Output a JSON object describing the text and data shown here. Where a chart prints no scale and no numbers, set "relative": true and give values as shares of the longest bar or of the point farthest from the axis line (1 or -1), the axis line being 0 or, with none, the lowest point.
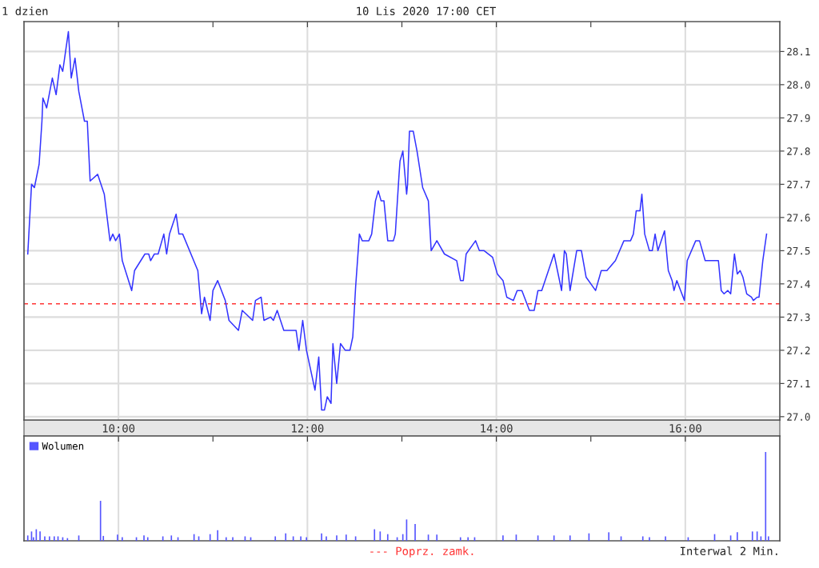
{
  "chart_data": [
    {
      "type": "line",
      "title": "1 dzien",
      "subtitle": "10 Lis 2020 17:00 CET",
      "xlim": [
        9,
        17
      ],
      "xticks": [
        {
          "value": 10,
          "label": "10:00"
        },
        {
          "value": 11,
          "label": null
        },
        {
          "value": 12,
          "label": "12:00"
        },
        {
          "value": 13,
          "label": null
        },
        {
          "value": 14,
          "label": "14:00"
        },
        {
          "value": 15,
          "label": null
        },
        {
          "value": 16,
          "label": "16:00"
        }
      ],
      "ylim": [
        26.99,
        28.19
      ],
      "yticks": [
        {
          "value": 27.0,
          "label": "27.0"
        },
        27.1,
        27.2,
        27.3,
        27.4,
        27.5,
        27.6,
        27.7,
        27.8,
        27.9,
        {
          "value": 28.0,
          "label": "28.0"
        },
        28.1
      ],
      "grid": true,
      "marker": "none",
      "line_style": "solid",
      "ref_lines": [
        {
          "axis": "y",
          "value": 27.34,
          "label": "--- Poprz. zamk.",
          "color": "#ff3333",
          "line_style": "dashed"
        }
      ],
      "series": [
        {
          "color": "#3333ff",
          "x": [
            9.04,
            9.08,
            9.11,
            9.16,
            9.19,
            9.2,
            9.24,
            9.3,
            9.34,
            9.38,
            9.41,
            9.44,
            9.47,
            9.5,
            9.54,
            9.58,
            9.64,
            9.67,
            9.7,
            9.78,
            9.85,
            9.91,
            9.94,
            9.97,
            10.01,
            10.04,
            10.14,
            10.17,
            10.28,
            10.32,
            10.34,
            10.38,
            10.42,
            10.48,
            10.51,
            10.54,
            10.61,
            10.64,
            10.68,
            10.84,
            10.88,
            10.91,
            10.97,
            11.0,
            11.05,
            11.13,
            11.17,
            11.27,
            11.31,
            11.42,
            11.45,
            11.51,
            11.54,
            11.61,
            11.64,
            11.68,
            11.75,
            11.88,
            11.91,
            11.95,
            11.99,
            12.08,
            12.12,
            12.15,
            12.18,
            12.21,
            12.25,
            12.27,
            12.31,
            12.35,
            12.4,
            12.45,
            12.48,
            12.51,
            12.55,
            12.58,
            12.65,
            12.68,
            12.72,
            12.75,
            12.78,
            12.81,
            12.85,
            12.91,
            12.93,
            12.97,
            12.98,
            13.01,
            13.05,
            13.06,
            13.08,
            13.12,
            13.16,
            13.22,
            13.28,
            13.31,
            13.37,
            13.45,
            13.58,
            13.62,
            13.65,
            13.68,
            13.78,
            13.82,
            13.87,
            13.96,
            14.01,
            14.07,
            14.11,
            14.18,
            14.22,
            14.27,
            14.35,
            14.4,
            14.44,
            14.48,
            14.61,
            14.69,
            14.72,
            14.74,
            14.78,
            14.85,
            14.9,
            14.95,
            15.05,
            15.11,
            15.17,
            15.26,
            15.35,
            15.42,
            15.45,
            15.48,
            15.52,
            15.54,
            15.57,
            15.62,
            15.65,
            15.68,
            15.71,
            15.78,
            15.82,
            15.86,
            15.88,
            15.91,
            15.99,
            16.02,
            16.11,
            16.15,
            16.21,
            16.35,
            16.38,
            16.41,
            16.45,
            16.48,
            16.52,
            16.55,
            16.58,
            16.61,
            16.65,
            16.7,
            16.72,
            16.76,
            16.78,
            16.82,
            16.86
          ],
          "values": [
            27.49,
            27.7,
            27.69,
            27.76,
            27.89,
            27.96,
            27.93,
            28.02,
            27.97,
            28.06,
            28.04,
            28.1,
            28.16,
            28.02,
            28.08,
            27.98,
            27.89,
            27.89,
            27.71,
            27.73,
            27.67,
            27.53,
            27.55,
            27.53,
            27.55,
            27.47,
            27.38,
            27.44,
            27.49,
            27.49,
            27.47,
            27.49,
            27.49,
            27.55,
            27.49,
            27.55,
            27.61,
            27.55,
            27.55,
            27.44,
            27.31,
            27.36,
            27.29,
            27.38,
            27.41,
            27.35,
            27.29,
            27.26,
            27.32,
            27.29,
            27.35,
            27.36,
            27.29,
            27.3,
            27.29,
            27.32,
            27.26,
            27.26,
            27.2,
            27.29,
            27.2,
            27.08,
            27.18,
            27.02,
            27.02,
            27.06,
            27.04,
            27.22,
            27.1,
            27.22,
            27.2,
            27.2,
            27.24,
            27.39,
            27.55,
            27.53,
            27.53,
            27.55,
            27.65,
            27.68,
            27.65,
            27.65,
            27.53,
            27.53,
            27.55,
            27.73,
            27.77,
            27.8,
            27.67,
            27.7,
            27.86,
            27.86,
            27.8,
            27.69,
            27.65,
            27.5,
            27.53,
            27.49,
            27.47,
            27.41,
            27.41,
            27.49,
            27.53,
            27.5,
            27.5,
            27.48,
            27.43,
            27.41,
            27.36,
            27.35,
            27.38,
            27.38,
            27.32,
            27.32,
            27.38,
            27.38,
            27.49,
            27.38,
            27.5,
            27.49,
            27.38,
            27.5,
            27.5,
            27.42,
            27.38,
            27.44,
            27.44,
            27.47,
            27.53,
            27.53,
            27.55,
            27.62,
            27.62,
            27.67,
            27.55,
            27.5,
            27.5,
            27.55,
            27.5,
            27.56,
            27.44,
            27.41,
            27.38,
            27.41,
            27.35,
            27.47,
            27.53,
            27.53,
            27.47,
            27.47,
            27.38,
            27.37,
            27.38,
            27.37,
            27.49,
            27.43,
            27.44,
            27.42,
            27.37,
            27.36,
            27.35,
            27.36,
            27.36,
            27.47,
            27.55
          ]
        }
      ]
    },
    {
      "type": "bar",
      "relative": true,
      "tick_labels": false,
      "legend": "top left",
      "grid": "x",
      "xlim": [
        9,
        17
      ],
      "xticks": [
        {
          "value": 10,
          "label": null
        },
        {
          "value": 11,
          "label": null
        },
        {
          "value": 12,
          "label": null
        },
        {
          "value": 13,
          "label": null
        },
        {
          "value": 14,
          "label": null
        },
        {
          "value": 15,
          "label": null
        },
        {
          "value": 16,
          "label": null
        }
      ],
      "annotations": [
        "Interwal 2 Min."
      ],
      "series": [
        {
          "name": "Wolumen",
          "color": "#5555ff",
          "x": [
            9.04,
            9.08,
            9.1,
            9.13,
            9.17,
            9.22,
            9.27,
            9.32,
            9.36,
            9.41,
            9.46,
            9.58,
            9.81,
            9.84,
            9.99,
            10.04,
            10.19,
            10.27,
            10.31,
            10.47,
            10.56,
            10.63,
            10.8,
            10.85,
            10.97,
            11.05,
            11.14,
            11.21,
            11.34,
            11.4,
            11.66,
            11.77,
            11.85,
            11.93,
            11.99,
            12.15,
            12.2,
            12.31,
            12.41,
            12.51,
            12.71,
            12.77,
            12.85,
            12.95,
            13.01,
            13.05,
            13.14,
            13.28,
            13.37,
            13.62,
            13.7,
            13.77,
            14.07,
            14.21,
            14.44,
            14.61,
            14.78,
            14.98,
            15.19,
            15.32,
            15.55,
            15.62,
            15.79,
            16.03,
            16.31,
            16.48,
            16.55,
            16.71,
            16.76,
            16.8,
            16.85,
            16.88
          ],
          "values": [
            0.06,
            0.105,
            0.04,
            0.13,
            0.105,
            0.05,
            0.05,
            0.05,
            0.05,
            0.04,
            0.03,
            0.06,
            0.45,
            0.055,
            0.07,
            0.04,
            0.04,
            0.06,
            0.04,
            0.05,
            0.06,
            0.04,
            0.075,
            0.05,
            0.075,
            0.12,
            0.04,
            0.04,
            0.05,
            0.04,
            0.05,
            0.084,
            0.05,
            0.05,
            0.04,
            0.084,
            0.05,
            0.06,
            0.07,
            0.05,
            0.13,
            0.105,
            0.075,
            0.04,
            0.075,
            0.24,
            0.19,
            0.07,
            0.07,
            0.04,
            0.04,
            0.04,
            0.06,
            0.07,
            0.06,
            0.06,
            0.06,
            0.084,
            0.096,
            0.05,
            0.05,
            0.04,
            0.05,
            0.04,
            0.075,
            0.06,
            0.096,
            0.105,
            0.105,
            0.05,
            1.0,
            0.05
          ]
        }
      ]
    }
  ]
}
